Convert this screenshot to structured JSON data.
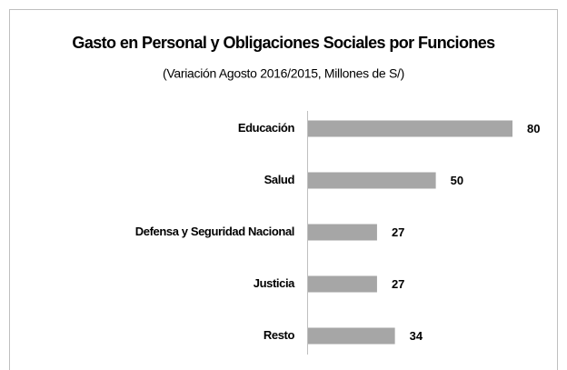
{
  "chart_data": {
    "type": "bar",
    "orientation": "horizontal",
    "title": "Gasto en Personal y Obligaciones Sociales por Funciones",
    "subtitle": "(Variación Agosto 2016/2015, Millones de S/)",
    "categories": [
      "Educación",
      "Salud",
      "Defensa y Seguridad Nacional",
      "Justicia",
      "Resto"
    ],
    "values": [
      80,
      50,
      27,
      27,
      34
    ],
    "color": "#a6a6a6"
  }
}
